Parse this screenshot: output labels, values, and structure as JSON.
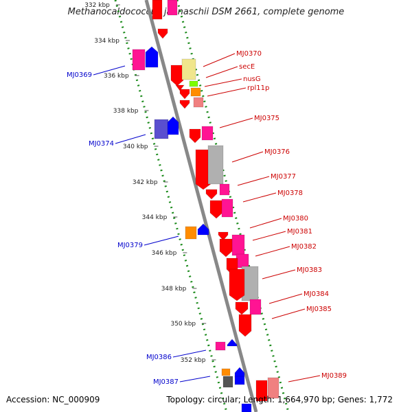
{
  "title": "Methanocaldococcus jannaschii DSM 2661, complete genome",
  "accession_text": "Accession: NC_000909",
  "topology_text": "Topology: circular; Length: 1,664,970 bp; Genes: 1,772",
  "ticks": [
    "332 kbp",
    "334 kbp",
    "336 kbp",
    "338 kbp",
    "340 kbp",
    "342 kbp",
    "344 kbp",
    "346 kbp",
    "348 kbp",
    "350 kbp",
    "352 kbp"
  ],
  "labels_forward": [
    "MJ0370",
    "secE",
    "nusG",
    "rpl11p",
    "MJ0375",
    "MJ0376",
    "MJ0377",
    "MJ0378",
    "MJ0380",
    "MJ0381",
    "MJ0382",
    "MJ0383",
    "MJ0384",
    "MJ0385",
    "MJ0389"
  ],
  "labels_reverse": [
    "MJ0369",
    "MJ0374",
    "MJ0379",
    "MJ0386",
    "MJ0387"
  ],
  "colors": {
    "backbone": "#888888",
    "dotted_ring": "#1a8a1a",
    "forward_label": "#cc0000",
    "reverse_label": "#0000cc",
    "gene_red": "#ff0000",
    "gene_pink": "#ff1493",
    "gene_blue": "#0000ff",
    "gene_purple": "#5a4fcf",
    "gene_orange": "#ff8c00",
    "gene_gray": "#b0b0b0",
    "gene_yellow": "#f0e68c",
    "gene_green": "#7cfc00",
    "gene_salmon": "#f08080"
  }
}
